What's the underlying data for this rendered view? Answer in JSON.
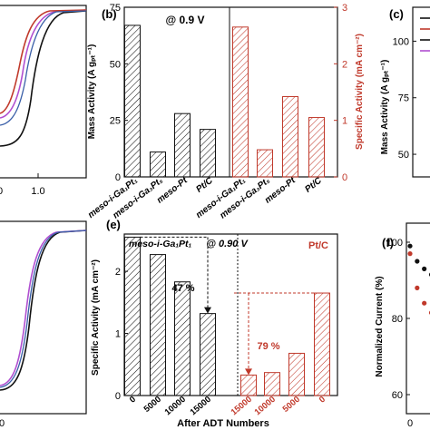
{
  "colors": {
    "black": "#111111",
    "red": "#c0392b",
    "purple": "#b04fd0",
    "darkred": "#8b1a1a",
    "blue": "#3a5fa8"
  },
  "panels": {
    "a": {
      "tick_x_0": "0",
      "tick_x_1": "1.0"
    },
    "b": {
      "label": "(b)",
      "annotation": "@ 0.9 V"
    },
    "c": {
      "label": "(c)"
    },
    "d": {
      "tick_x_0": "0"
    },
    "e": {
      "label": "(e)",
      "sample_label": "meso-i-Ga₁Pt₁",
      "annotation": "@ 0.90 V",
      "ptc_label": "Pt/C",
      "pct_left": "47 %",
      "pct_right": "79 %"
    },
    "f": {
      "label": "(f)"
    }
  },
  "chart_data": [
    {
      "id": "b",
      "type": "bar",
      "categories": [
        "meso-i-Ga₁Pt₁",
        "meso-i-Ga₃Pt₅",
        "meso-Pt",
        "Pt/C"
      ],
      "series": [
        {
          "name": "Mass Activity",
          "values": [
            67,
            11,
            28,
            21
          ],
          "axis": "left",
          "color": "#111111"
        },
        {
          "name": "Specific Activity",
          "values": [
            2.65,
            0.48,
            1.42,
            1.05
          ],
          "axis": "right",
          "color": "#c0392b"
        }
      ],
      "ylabel": "Mass Activity (A gₚₜ⁻¹)",
      "ylabel_right": "Specific Activity (mA cm⁻²)",
      "ylim": [
        0,
        75
      ],
      "ylim_right": [
        0,
        3
      ],
      "yticks": [
        "0",
        "25",
        "50",
        "75"
      ],
      "yticks_right": [
        "0",
        "1",
        "2",
        "3"
      ]
    },
    {
      "id": "e",
      "type": "bar",
      "xlabel": "After ADT Numbers",
      "ylabel": "Specific Activity (mA cm⁻²)",
      "ylim": [
        0,
        2.6
      ],
      "yticks": [
        "0",
        "1",
        "2"
      ],
      "series": [
        {
          "name": "meso-i-Ga₁Pt₁",
          "categories": [
            "0",
            "5000",
            "10000",
            "15000"
          ],
          "values": [
            2.55,
            2.27,
            1.83,
            1.32
          ],
          "color": "#111111"
        },
        {
          "name": "Pt/C",
          "categories": [
            "15000",
            "10000",
            "5000",
            "0"
          ],
          "values": [
            0.33,
            0.37,
            0.68,
            1.65
          ],
          "color": "#c0392b"
        }
      ]
    },
    {
      "id": "c",
      "type": "line",
      "ylabel": "Mass Activity (A gₚₜ⁻¹)",
      "yticks": [
        "50",
        "75",
        "100"
      ],
      "ylim": [
        40,
        115
      ]
    },
    {
      "id": "f",
      "type": "line",
      "ylabel": "Normalized Current (%)",
      "yticks": [
        "60",
        "80",
        "100"
      ],
      "xticks": [
        "0"
      ],
      "ylim": [
        55,
        105
      ],
      "series": [
        {
          "color": "#111111",
          "x": [
            0,
            2,
            4,
            6,
            8,
            10,
            12
          ],
          "y": [
            99,
            95,
            93,
            91.5,
            90.5,
            89.5,
            89
          ]
        },
        {
          "color": "#c0392b",
          "x": [
            0,
            2,
            4,
            6,
            8,
            10,
            12
          ],
          "y": [
            97,
            88,
            84,
            81.5,
            80,
            79,
            78.5
          ]
        }
      ]
    }
  ]
}
